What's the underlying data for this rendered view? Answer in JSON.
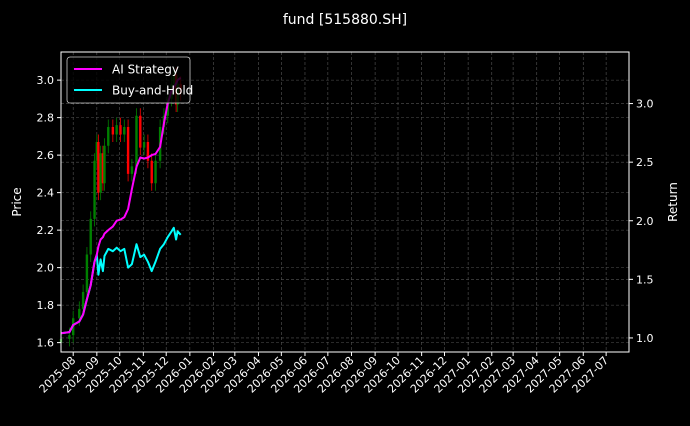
{
  "chart_data": {
    "type": "line",
    "title": "fund [515880.SH]",
    "ylabel_left": "Price",
    "ylabel_right": "Return",
    "xlim": [
      "2025-07-16",
      "2027-07-31"
    ],
    "ylim_left": [
      1.55,
      3.15
    ],
    "ylim_right": [
      0.88,
      3.44
    ],
    "grid": true,
    "legend_placement": "top-left",
    "x_ticks": [
      "2025-08",
      "2025-09",
      "2025-10",
      "2025-11",
      "2025-12",
      "2026-01",
      "2026-02",
      "2026-03",
      "2026-04",
      "2026-05",
      "2026-06",
      "2026-07",
      "2026-08",
      "2026-09",
      "2026-10",
      "2026-11",
      "2026-12",
      "2027-01",
      "2027-02",
      "2027-03",
      "2027-04",
      "2027-05",
      "2027-06",
      "2027-07"
    ],
    "y_ticks_left": [
      "1.6",
      "1.8",
      "2.0",
      "2.2",
      "2.4",
      "2.6",
      "2.8",
      "3.0"
    ],
    "y_ticks_right": [
      "1.0",
      "1.5",
      "2.0",
      "2.5",
      "3.0"
    ],
    "dates": [
      "2025-07-16",
      "2025-07-27",
      "2025-08-01",
      "2025-08-09",
      "2025-08-14",
      "2025-08-19",
      "2025-08-24",
      "2025-08-29",
      "2025-09-01",
      "2025-09-03",
      "2025-09-06",
      "2025-09-09",
      "2025-09-11",
      "2025-09-16",
      "2025-09-22",
      "2025-09-27",
      "2025-10-02",
      "2025-10-07",
      "2025-10-12",
      "2025-10-17",
      "2025-10-23",
      "2025-10-28",
      "2025-11-02",
      "2025-11-07",
      "2025-11-12",
      "2025-11-17",
      "2025-11-23",
      "2025-11-28",
      "2025-12-03",
      "2025-12-08",
      "2025-12-11",
      "2025-12-14",
      "2025-12-16",
      "2025-12-20"
    ],
    "price_candles": {
      "axis": "left",
      "close": [
        1.62,
        1.64,
        1.73,
        1.78,
        1.87,
        2.07,
        2.26,
        2.57,
        2.67,
        2.4,
        2.61,
        2.45,
        2.65,
        2.75,
        2.71,
        2.76,
        2.71,
        2.75,
        2.5,
        2.54,
        2.81,
        2.64,
        2.67,
        2.57,
        2.45,
        2.57,
        2.75,
        2.81,
        2.9,
        2.98,
        3.03,
        2.87,
        2.98,
        2.93
      ],
      "up_color": "#008000",
      "down_color": "#ff0000"
    },
    "series": [
      {
        "name": "AI Strategy",
        "axis": "right",
        "color": "#ff00ff",
        "values": [
          1.04,
          1.05,
          1.11,
          1.14,
          1.2,
          1.33,
          1.45,
          1.65,
          1.71,
          1.78,
          1.84,
          1.86,
          1.89,
          1.92,
          1.95,
          2.0,
          2.01,
          2.03,
          2.1,
          2.27,
          2.46,
          2.54,
          2.53,
          2.54,
          2.56,
          2.57,
          2.63,
          2.83,
          3.0,
          3.11,
          3.14,
          3.17,
          3.2,
          3.22
        ]
      },
      {
        "name": "Buy-and-Hold",
        "axis": "right",
        "color": "#00ffff",
        "values": [
          1.04,
          1.05,
          1.11,
          1.14,
          1.2,
          1.33,
          1.45,
          1.65,
          1.71,
          1.54,
          1.67,
          1.57,
          1.7,
          1.76,
          1.74,
          1.77,
          1.74,
          1.76,
          1.6,
          1.63,
          1.8,
          1.69,
          1.71,
          1.65,
          1.57,
          1.65,
          1.76,
          1.8,
          1.86,
          1.91,
          1.94,
          1.84,
          1.91,
          1.88
        ]
      }
    ]
  }
}
